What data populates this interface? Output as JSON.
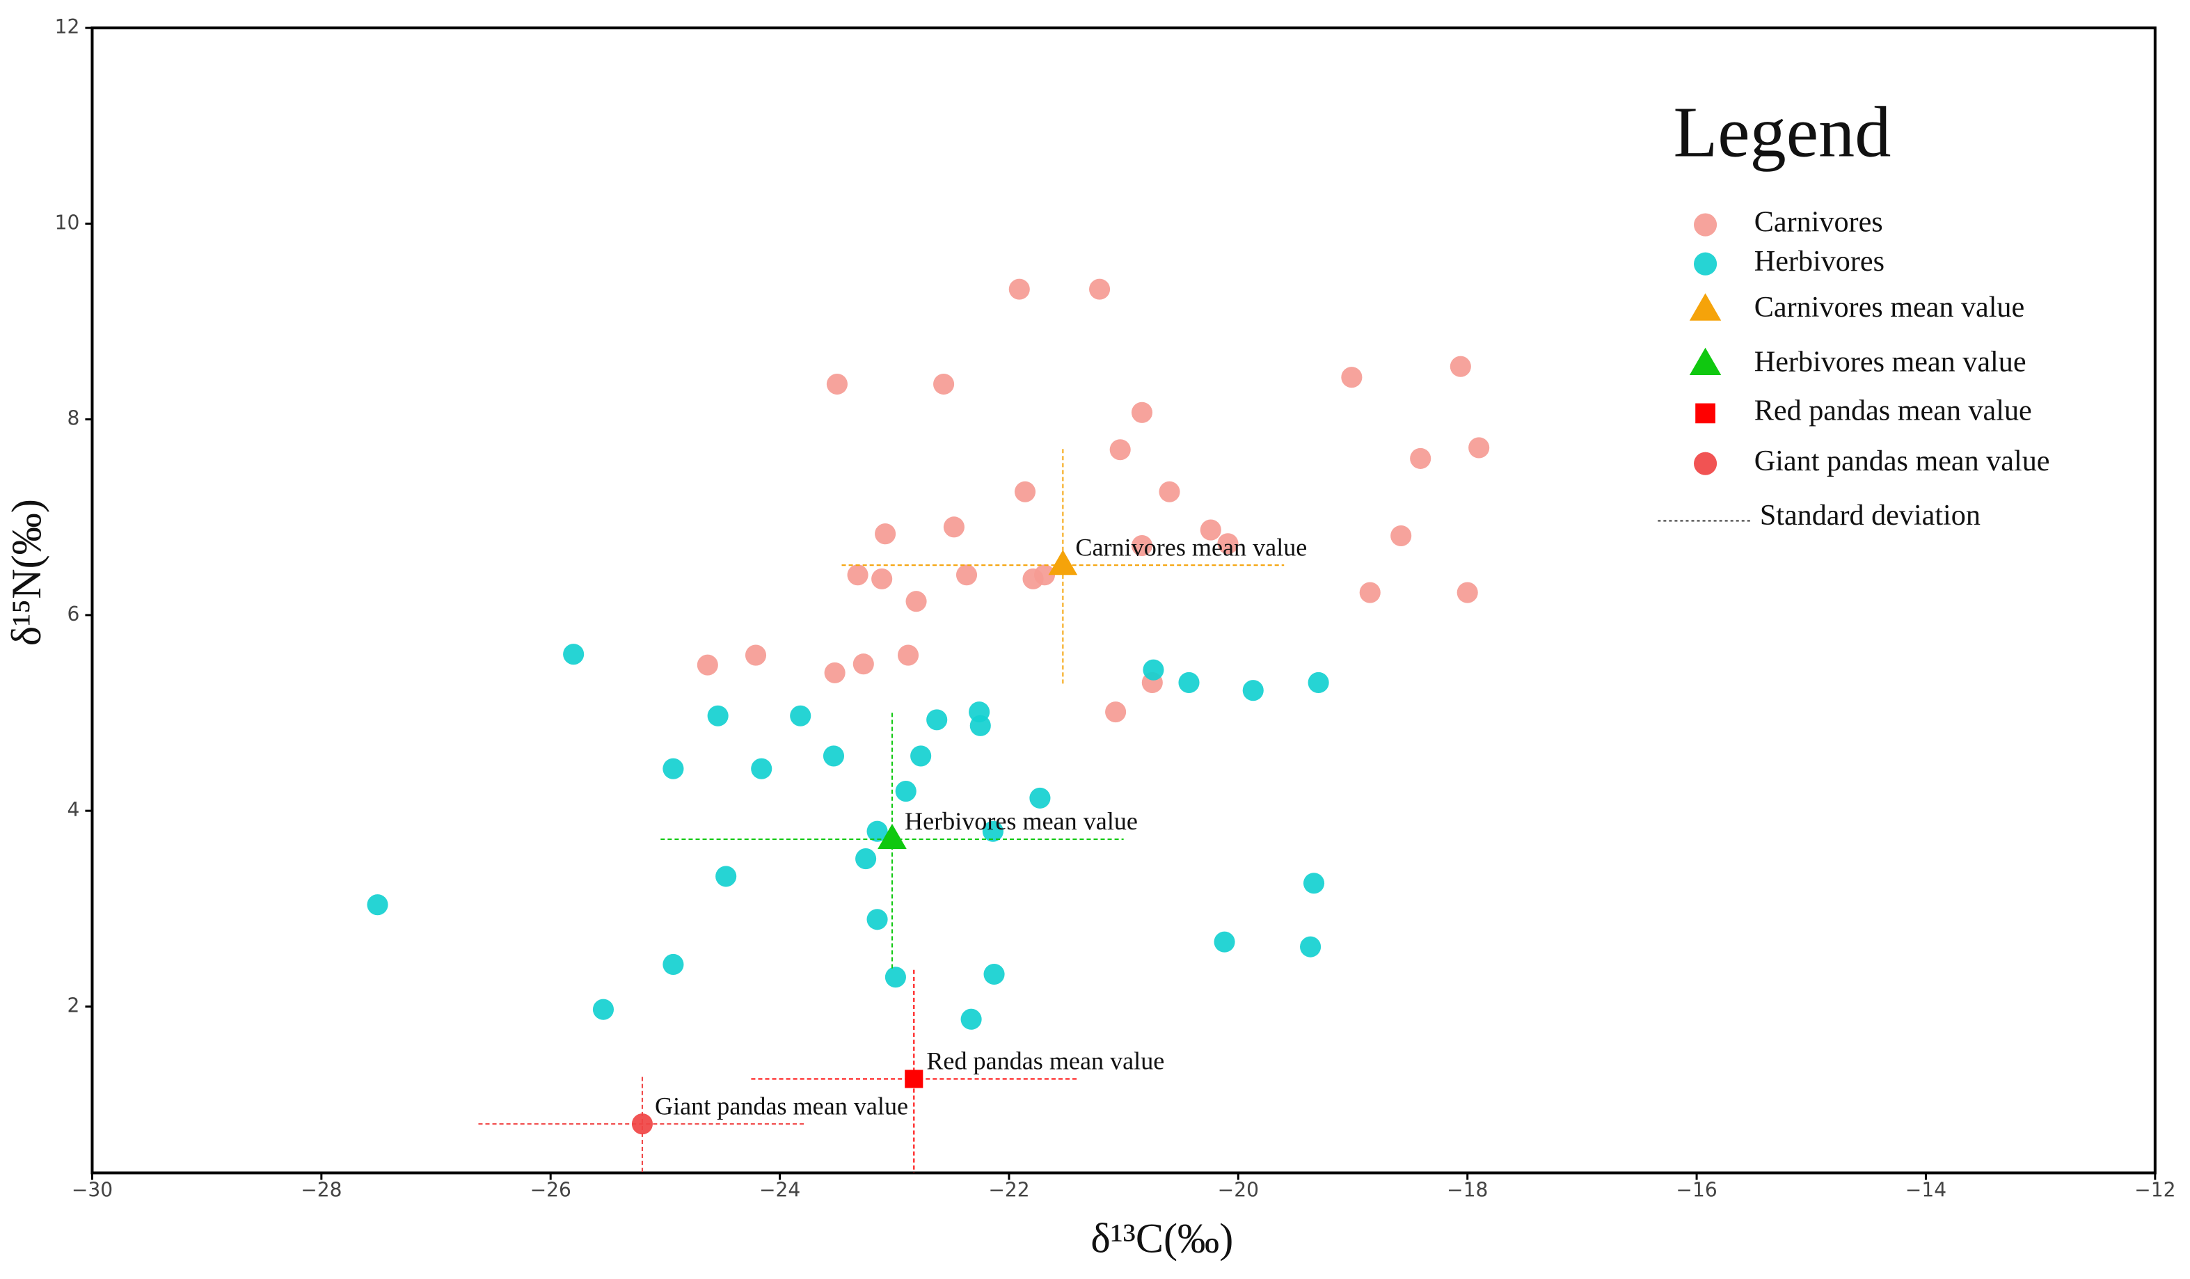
{
  "chart_data": {
    "type": "scatter",
    "xlabel": "δ¹³C(‰)",
    "ylabel": "δ¹⁵N(‰)",
    "xlim": [
      -30,
      -12
    ],
    "ylim": [
      0.3,
      12
    ],
    "xticks": [
      {
        "value": -30,
        "label": "−30"
      },
      {
        "value": -28,
        "label": "−28"
      },
      {
        "value": -26,
        "label": "−26"
      },
      {
        "value": -24,
        "label": "−24"
      },
      {
        "value": -22,
        "label": "−22"
      },
      {
        "value": -20,
        "label": "−20"
      },
      {
        "value": -18,
        "label": "−18"
      },
      {
        "value": -16,
        "label": "−16"
      },
      {
        "value": -14,
        "label": "−14"
      },
      {
        "value": -12,
        "label": "−12"
      }
    ],
    "yticks": [
      2,
      4,
      6,
      8,
      10,
      12
    ],
    "grid": false,
    "legend": {
      "title": "Legend",
      "position": "upper right",
      "extra": "Standard deviation"
    },
    "series": [
      {
        "name": "Carnivores",
        "color": "#f59b94",
        "marker": "circle",
        "x": [
          -21.91,
          -21.21,
          -23.5,
          -22.57,
          -19.01,
          -18.06,
          -20.84,
          -18.41,
          -17.9,
          -21.03,
          -21.86,
          -20.6,
          -22.48,
          -23.08,
          -20.24,
          -20.09,
          -20.84,
          -18.58,
          -23.32,
          -23.11,
          -22.37,
          -21.69,
          -21.79,
          -22.81,
          -18.85,
          -18.0,
          -24.63,
          -24.21,
          -23.27,
          -22.88,
          -23.52,
          -20.75,
          -21.07
        ],
        "values": [
          9.33,
          9.33,
          8.36,
          8.36,
          8.43,
          8.54,
          8.07,
          7.6,
          7.71,
          7.69,
          7.26,
          7.26,
          6.9,
          6.83,
          6.87,
          6.73,
          6.71,
          6.81,
          6.41,
          6.37,
          6.41,
          6.41,
          6.37,
          6.14,
          6.23,
          6.23,
          5.49,
          5.59,
          5.5,
          5.59,
          5.41,
          5.31,
          5.01
        ]
      },
      {
        "name": "Herbivores",
        "color": "#14d0d0",
        "marker": "circle",
        "x": [
          -25.8,
          -27.51,
          -24.54,
          -23.82,
          -24.93,
          -24.16,
          -23.53,
          -22.77,
          -22.63,
          -22.26,
          -22.25,
          -22.9,
          -21.73,
          -23.15,
          -22.14,
          -23.25,
          -24.47,
          -23.15,
          -19.34,
          -20.12,
          -19.37,
          -24.93,
          -22.13,
          -22.99,
          -25.54,
          -22.33,
          -20.74,
          -20.43,
          -19.87,
          -19.3
        ],
        "values": [
          5.6,
          3.04,
          4.97,
          4.97,
          4.43,
          4.43,
          4.56,
          4.56,
          4.93,
          5.01,
          4.87,
          4.2,
          4.13,
          3.79,
          3.79,
          3.51,
          3.33,
          2.89,
          3.26,
          2.66,
          2.61,
          2.43,
          2.33,
          2.3,
          1.97,
          1.87,
          5.44,
          5.31,
          5.23,
          5.31
        ]
      },
      {
        "name": "Carnivores mean value",
        "color": "#f5a30a",
        "marker": "triangle",
        "annotation": "Carnivores mean value",
        "x": [
          -21.53
        ],
        "values": [
          6.51
        ],
        "xerr": [
          1.93
        ],
        "yerr": [
          1.21
        ]
      },
      {
        "name": "Herbivores mean value",
        "color": "#10c810",
        "marker": "triangle",
        "annotation": "Herbivores  mean value",
        "x": [
          -23.02
        ],
        "values": [
          3.71
        ],
        "xerr": [
          2.02
        ],
        "yerr": [
          1.32
        ]
      },
      {
        "name": "Red pandas mean value",
        "color": "#ff0000",
        "marker": "square",
        "annotation": "Red pandas mean value",
        "x": [
          -22.83
        ],
        "values": [
          1.26
        ],
        "xerr": [
          1.42
        ],
        "yerr": [
          1.14
        ]
      },
      {
        "name": "Giant pandas mean value",
        "color": "#f04444",
        "marker": "circle",
        "annotation": "Giant pandas mean value",
        "x": [
          -25.2
        ],
        "values": [
          0.8
        ],
        "xerr": [
          1.43
        ],
        "yerr": [
          0.49
        ]
      }
    ]
  }
}
